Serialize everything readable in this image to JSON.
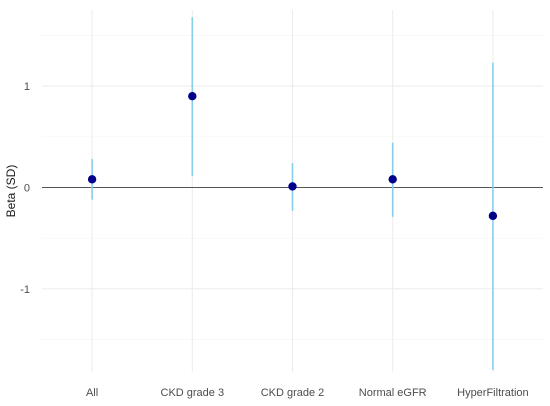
{
  "chart_data": {
    "type": "scatter",
    "subtype": "point-range",
    "title": "",
    "xlabel": "",
    "ylabel": "Beta (SD)",
    "categories": [
      "All",
      "CKD grade 3",
      "CKD grade 2",
      "Normal eGFR",
      "HyperFiltration"
    ],
    "points": [
      {
        "category": "All",
        "estimate": 0.08,
        "lower": -0.12,
        "upper": 0.28
      },
      {
        "category": "CKD grade 3",
        "estimate": 0.9,
        "lower": 0.11,
        "upper": 1.68
      },
      {
        "category": "CKD grade 2",
        "estimate": 0.01,
        "lower": -0.23,
        "upper": 0.24
      },
      {
        "category": "Normal eGFR",
        "estimate": 0.08,
        "lower": -0.29,
        "upper": 0.44
      },
      {
        "category": "HyperFiltration",
        "estimate": -0.28,
        "lower": -1.8,
        "upper": 1.23
      }
    ],
    "ylim": [
      -1.82,
      1.75
    ],
    "yticks": [
      -1,
      0,
      1
    ],
    "reference_line": 0,
    "grid": true,
    "colors": {
      "point": "#00008b",
      "interval": "#87ceeb",
      "reference": "#404040",
      "grid": "#ebebeb"
    }
  }
}
